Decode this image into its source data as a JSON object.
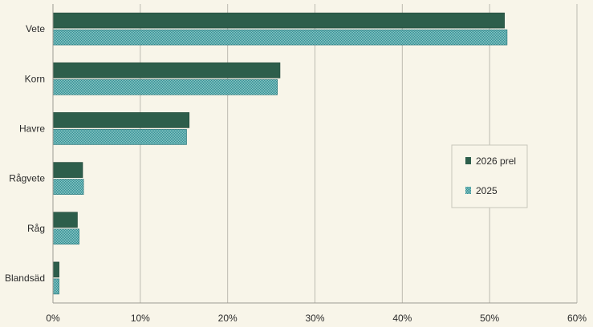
{
  "chart_data": {
    "type": "bar",
    "orientation": "horizontal",
    "categories": [
      "Vete",
      "Korn",
      "Havre",
      "Rågvete",
      "Råg",
      "Blandsäd"
    ],
    "series": [
      {
        "name": "2026 prel",
        "values": [
          51.7,
          26.0,
          15.6,
          3.4,
          2.8,
          0.7
        ],
        "color": "#2d5e4b",
        "pattern": "solid"
      },
      {
        "name": "2025",
        "values": [
          52.0,
          25.7,
          15.3,
          3.5,
          3.0,
          0.7
        ],
        "color": "#2f8f94",
        "pattern": "checker"
      }
    ],
    "xlim": [
      0,
      60
    ],
    "x_ticks": [
      "0%",
      "10%",
      "20%",
      "30%",
      "40%",
      "50%",
      "60%"
    ],
    "grid": "vertical",
    "legend_position": "right",
    "colors": {
      "background": "#f8f5e9",
      "gridline": "#bdbbb1",
      "axis": "#9d9b92"
    }
  }
}
